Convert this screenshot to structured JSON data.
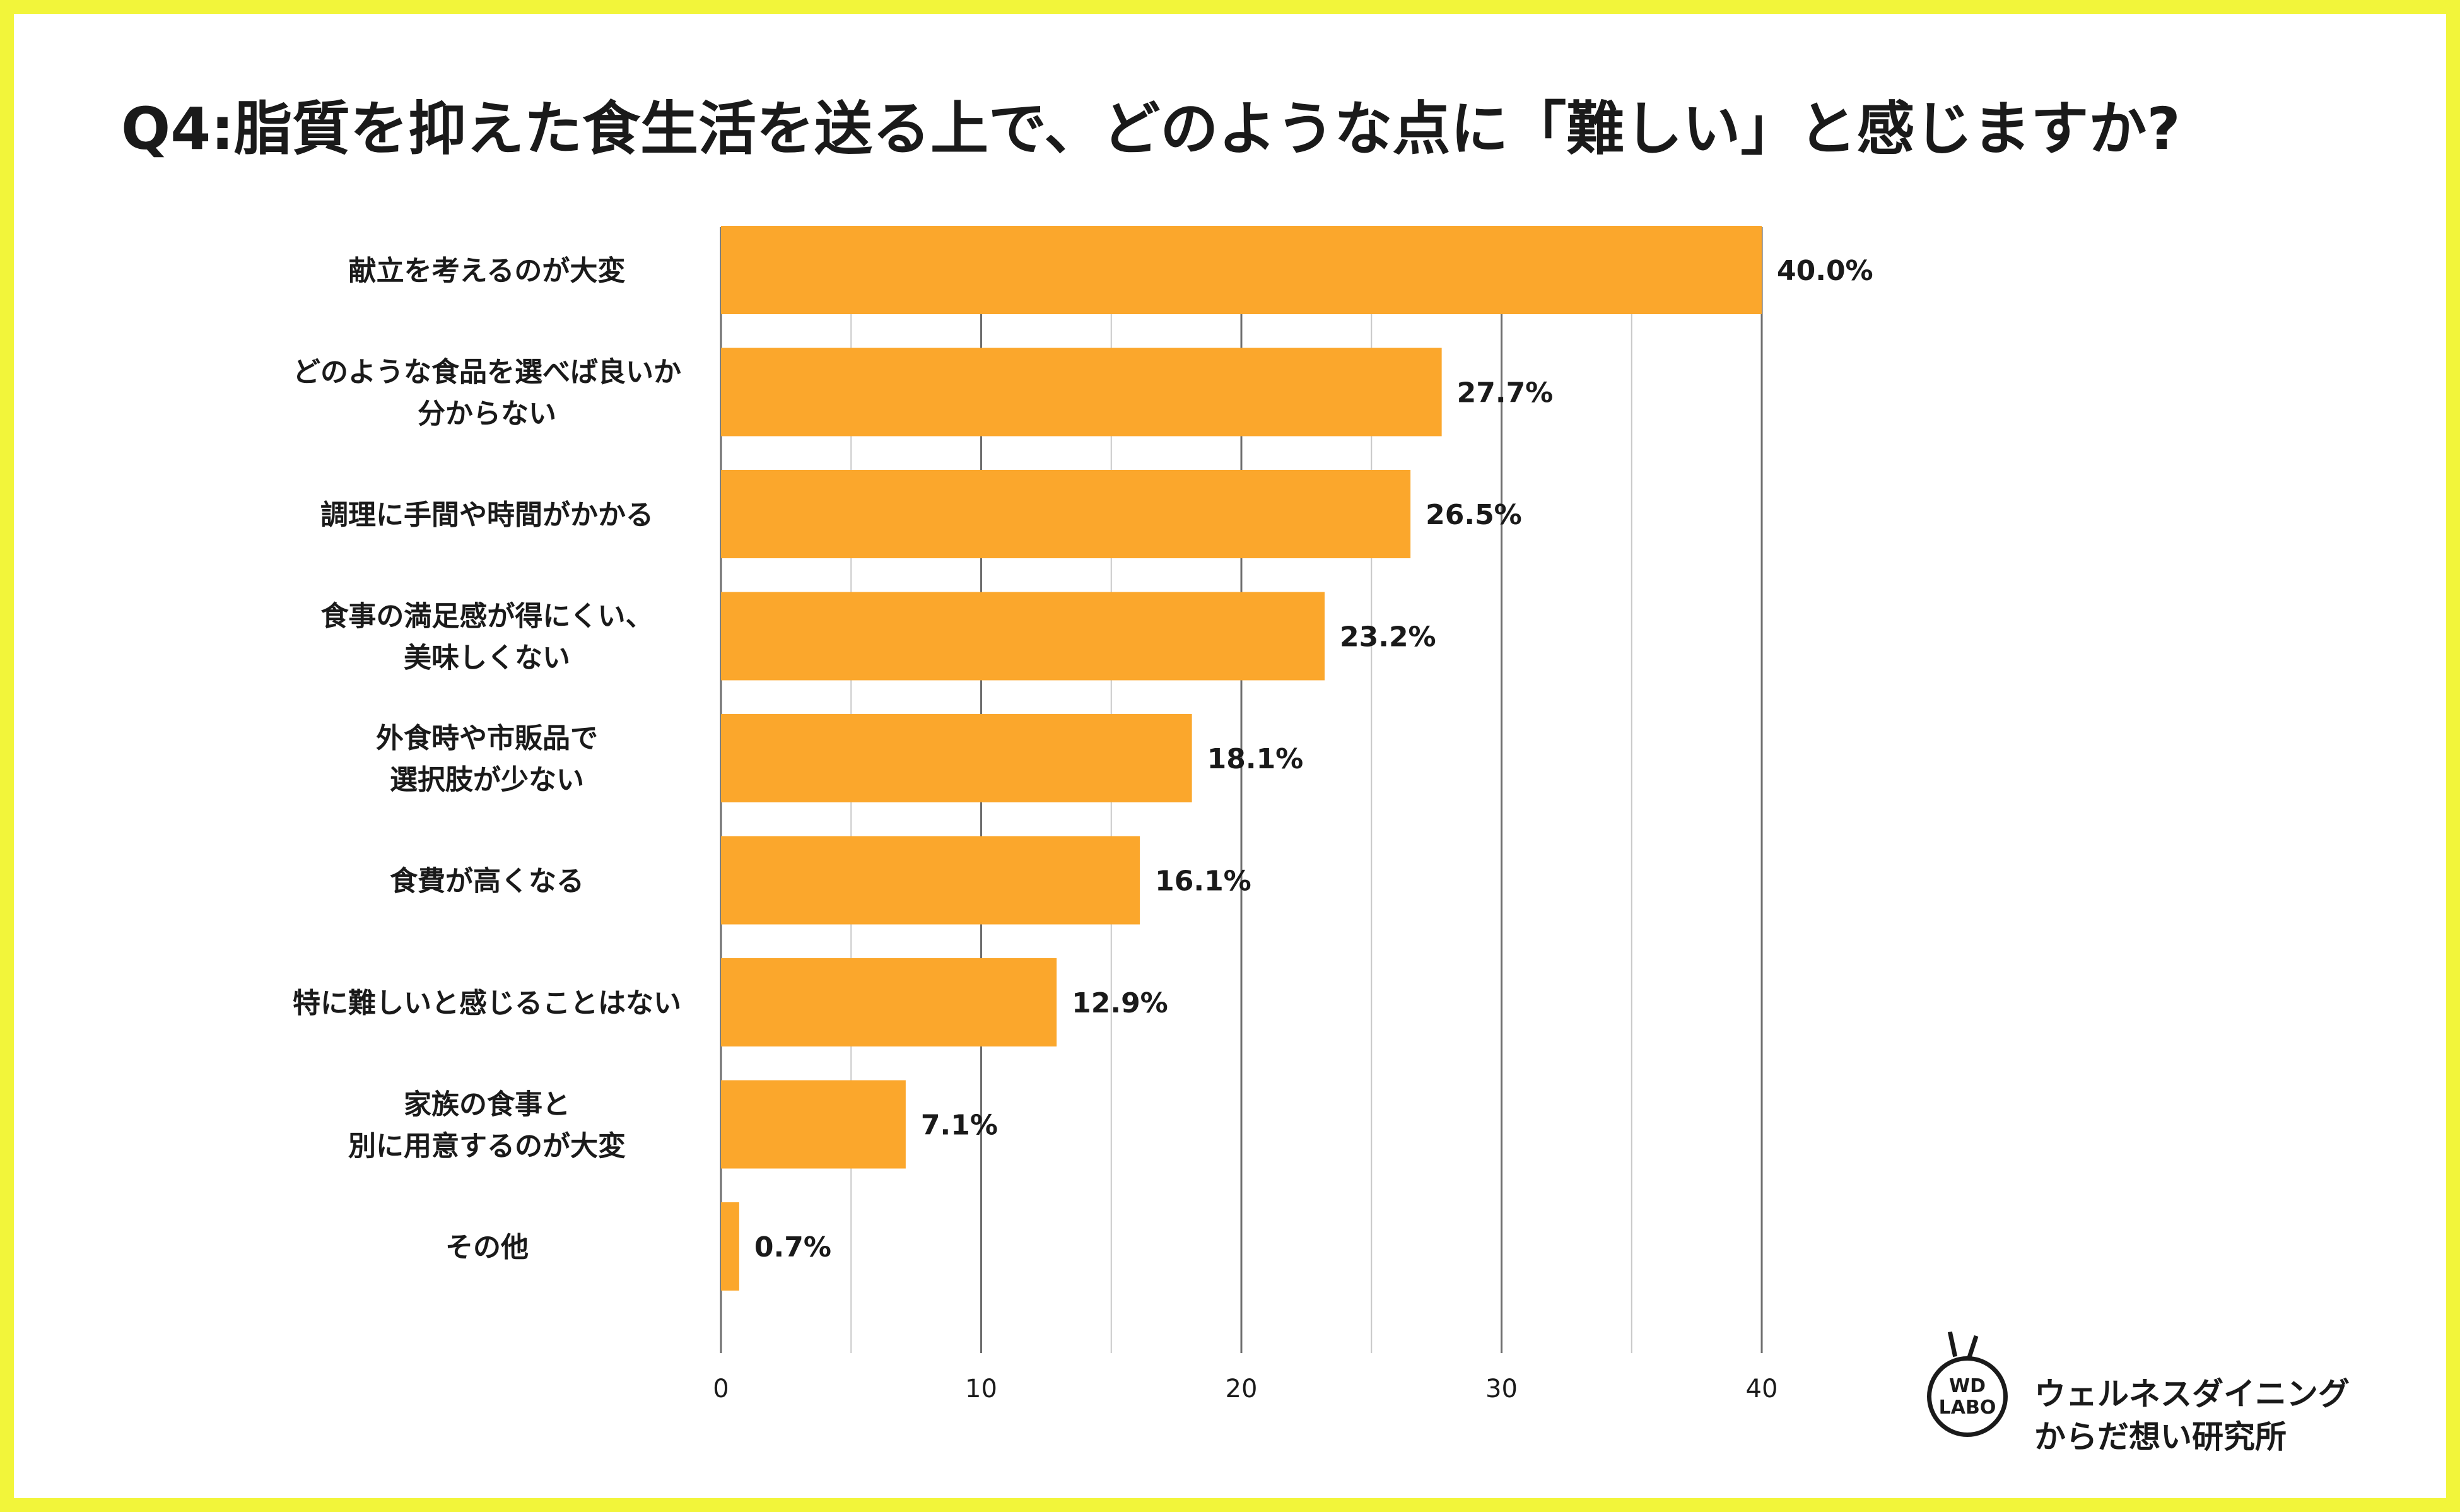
{
  "title": "Q4:脂質を抑えた食生活を送る上で、どのような点に「難しい」と感じますか?",
  "logo": {
    "mark_line1": "WD",
    "mark_line2": "LABO",
    "text_line1": "ウェルネスダイニング",
    "text_line2": "からだ想い研究所"
  },
  "colors": {
    "bar": "#fba72c",
    "frame": "#f2f53a",
    "grid": "#c8c8c8",
    "grid_major": "#6e6e6e"
  },
  "chart_data": {
    "type": "bar",
    "orientation": "horizontal",
    "categories": [
      [
        "献立を考えるのが大変"
      ],
      [
        "どのような食品を選べば良いか",
        "分からない"
      ],
      [
        "調理に手間や時間がかかる"
      ],
      [
        "食事の満足感が得にくい、",
        "美味しくない"
      ],
      [
        "外食時や市販品で",
        "選択肢が少ない"
      ],
      [
        "食費が高くなる"
      ],
      [
        "特に難しいと感じることはない"
      ],
      [
        "家族の食事と",
        "別に用意するのが大変"
      ],
      [
        "その他"
      ]
    ],
    "values": [
      40.0,
      27.7,
      26.5,
      23.2,
      18.1,
      16.1,
      12.9,
      7.1,
      0.7
    ],
    "value_labels": [
      "40.0%",
      "27.7%",
      "26.5%",
      "23.2%",
      "18.1%",
      "16.1%",
      "12.9%",
      "7.1%",
      "0.7%"
    ],
    "xlim": [
      0,
      40
    ],
    "xticks": [
      0,
      10,
      20,
      30,
      40
    ],
    "minor_grid": [
      5,
      15,
      25,
      35
    ],
    "grid": true,
    "legend": "none"
  }
}
